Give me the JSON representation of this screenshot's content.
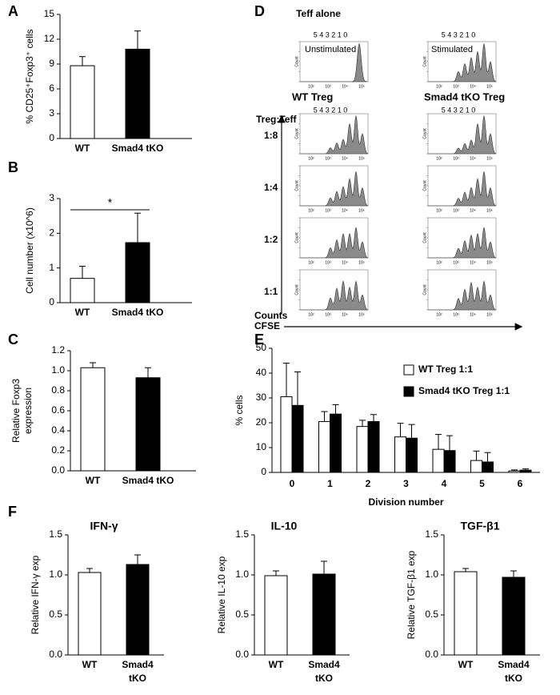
{
  "panel_labels": [
    "A",
    "B",
    "C",
    "D",
    "E",
    "F"
  ],
  "chart_data": [
    {
      "type": "bar",
      "ylabel": [
        "% CD25⁺Foxp3⁺ cells"
      ],
      "categories": [
        [
          "WT"
        ],
        [
          "Smad4 tKO"
        ]
      ],
      "values": [
        8.8,
        10.8
      ],
      "errors": [
        1.1,
        2.2
      ],
      "colors": [
        "#ffffff",
        "#000000"
      ],
      "ylim": [
        0,
        15
      ],
      "yticks": [
        0,
        3,
        6,
        9,
        12,
        15
      ]
    },
    {
      "type": "bar",
      "ylabel": [
        "Cell number (x10^6)"
      ],
      "categories": [
        [
          "WT"
        ],
        [
          "Smad4 tKO"
        ]
      ],
      "values": [
        0.7,
        1.73
      ],
      "errors": [
        0.35,
        0.85
      ],
      "colors": [
        "#ffffff",
        "#000000"
      ],
      "ylim": [
        0,
        3
      ],
      "yticks": [
        0,
        1,
        2,
        3
      ],
      "annotation": "*"
    },
    {
      "type": "bar",
      "ylabel": [
        "Relative Foxp3",
        "expression"
      ],
      "categories": [
        [
          "WT"
        ],
        [
          "Smad4 tKO"
        ]
      ],
      "values": [
        1.03,
        0.93
      ],
      "errors": [
        0.05,
        0.1
      ],
      "colors": [
        "#ffffff",
        "#000000"
      ],
      "ylim": [
        0,
        1.2
      ],
      "yticks": [
        {
          "value": 0,
          "label": "0.0"
        },
        {
          "value": 0.2,
          "label": "0.2"
        },
        {
          "value": 0.4,
          "label": "0.4"
        },
        {
          "value": 0.6,
          "label": "0.6"
        },
        {
          "value": 0.8,
          "label": "0.8"
        },
        {
          "value": 1,
          "label": "1.0"
        },
        {
          "value": 1.2,
          "label": "1.2"
        }
      ]
    },
    {
      "type": "grouped_bar",
      "ylabel": [
        "% cells"
      ],
      "xlabel": "Division number",
      "categories": [
        "0",
        "1",
        "2",
        "3",
        "4",
        "5",
        "6"
      ],
      "series": [
        {
          "name": "WT Treg 1:1",
          "color": "#ffffff",
          "values": [
            30.5,
            20.5,
            18.5,
            14.3,
            9.3,
            4.8,
            0.6
          ],
          "errors": [
            13.5,
            4,
            2.5,
            5.5,
            6,
            3.8,
            0.4
          ]
        },
        {
          "name": "Smad4 tKO Treg 1:1",
          "color": "#000000",
          "values": [
            27,
            23.5,
            20.5,
            13.8,
            8.8,
            4.2,
            0.9
          ],
          "errors": [
            13.5,
            3.8,
            2.8,
            5.5,
            6,
            3.8,
            0.5
          ]
        }
      ],
      "ylim": [
        0,
        50
      ],
      "yticks": [
        0,
        10,
        20,
        30,
        40,
        50
      ]
    },
    {
      "type": "bar",
      "title": "IFN-γ",
      "ylabel": [
        "Relative IFN-γ exp"
      ],
      "categories": [
        [
          "WT"
        ],
        [
          "Smad4",
          "tKO"
        ]
      ],
      "values": [
        1.03,
        1.13
      ],
      "errors": [
        0.05,
        0.12
      ],
      "colors": [
        "#ffffff",
        "#000000"
      ],
      "ylim": [
        0,
        1.5
      ],
      "yticks": [
        {
          "value": 0,
          "label": "0.0"
        },
        {
          "value": 0.5,
          "label": "0.5"
        },
        {
          "value": 1,
          "label": "1.0"
        },
        {
          "value": 1.5,
          "label": "1.5"
        }
      ]
    },
    {
      "type": "bar",
      "title": "IL-10",
      "ylabel": [
        "Relative IL-10 exp"
      ],
      "categories": [
        [
          "WT"
        ],
        [
          "Smad4",
          "tKO"
        ]
      ],
      "values": [
        0.99,
        1.01
      ],
      "errors": [
        0.06,
        0.16
      ],
      "colors": [
        "#ffffff",
        "#000000"
      ],
      "ylim": [
        0,
        1.5
      ],
      "yticks": [
        {
          "value": 0,
          "label": "0.0"
        },
        {
          "value": 0.5,
          "label": "0.5"
        },
        {
          "value": 1,
          "label": "1.0"
        },
        {
          "value": 1.5,
          "label": "1.5"
        }
      ]
    },
    {
      "type": "bar",
      "title": "TGF-β1",
      "ylabel": [
        "Relative TGF-β1 exp"
      ],
      "categories": [
        [
          "WT"
        ],
        [
          "Smad4",
          "tKO"
        ]
      ],
      "values": [
        1.04,
        0.97
      ],
      "errors": [
        0.04,
        0.08
      ],
      "colors": [
        "#ffffff",
        "#000000"
      ],
      "ylim": [
        0,
        1.5
      ],
      "yticks": [
        {
          "value": 0,
          "label": "0.0"
        },
        {
          "value": 0.5,
          "label": "0.5"
        },
        {
          "value": 1,
          "label": "1.0"
        },
        {
          "value": 1.5,
          "label": "1.5"
        }
      ]
    }
  ],
  "flow": {
    "title": "Teff alone",
    "conditions": [
      "Unstimulated",
      "Stimulated"
    ],
    "division_labels": "5 4 3 2 1 0",
    "columns": [
      "WT Treg",
      "Smad4 tKO Treg"
    ],
    "ratio_title": "Treg:Teff",
    "ratios": [
      "1:8",
      "1:4",
      "1:2",
      "1:1"
    ],
    "y_axis": "Counts",
    "x_axis": "CFSE",
    "count_label": "Count",
    "xticks": [
      "10²",
      "10³",
      "10⁴",
      "10⁵"
    ]
  }
}
